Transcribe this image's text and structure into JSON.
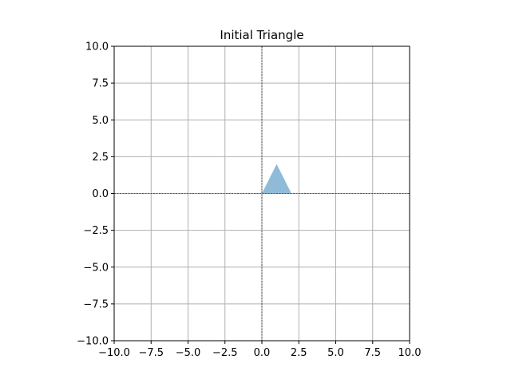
{
  "chart_data": {
    "type": "area",
    "title": "Initial Triangle",
    "xlabel": "",
    "ylabel": "",
    "xlim": [
      -10,
      10
    ],
    "ylim": [
      -10,
      10
    ],
    "xticks": [
      -10,
      -7.5,
      -5,
      -2.5,
      0,
      2.5,
      5,
      7.5,
      10
    ],
    "yticks": [
      -10,
      -7.5,
      -5,
      -2.5,
      0,
      2.5,
      5,
      7.5,
      10
    ],
    "xtick_labels": [
      "−10.0",
      "−7.5",
      "−5.0",
      "−2.5",
      "0.0",
      "2.5",
      "5.0",
      "7.5",
      "10.0"
    ],
    "ytick_labels": [
      "−10.0",
      "−7.5",
      "−5.0",
      "−2.5",
      "0.0",
      "2.5",
      "5.0",
      "7.5",
      "10.0"
    ],
    "grid": true,
    "reference_lines": {
      "x": 0,
      "y": 0,
      "style": "dashed"
    },
    "polygon": {
      "vertices": [
        [
          0,
          0
        ],
        [
          1,
          2
        ],
        [
          2,
          0
        ]
      ],
      "color": "#1f77b4",
      "alpha": 0.5
    }
  }
}
